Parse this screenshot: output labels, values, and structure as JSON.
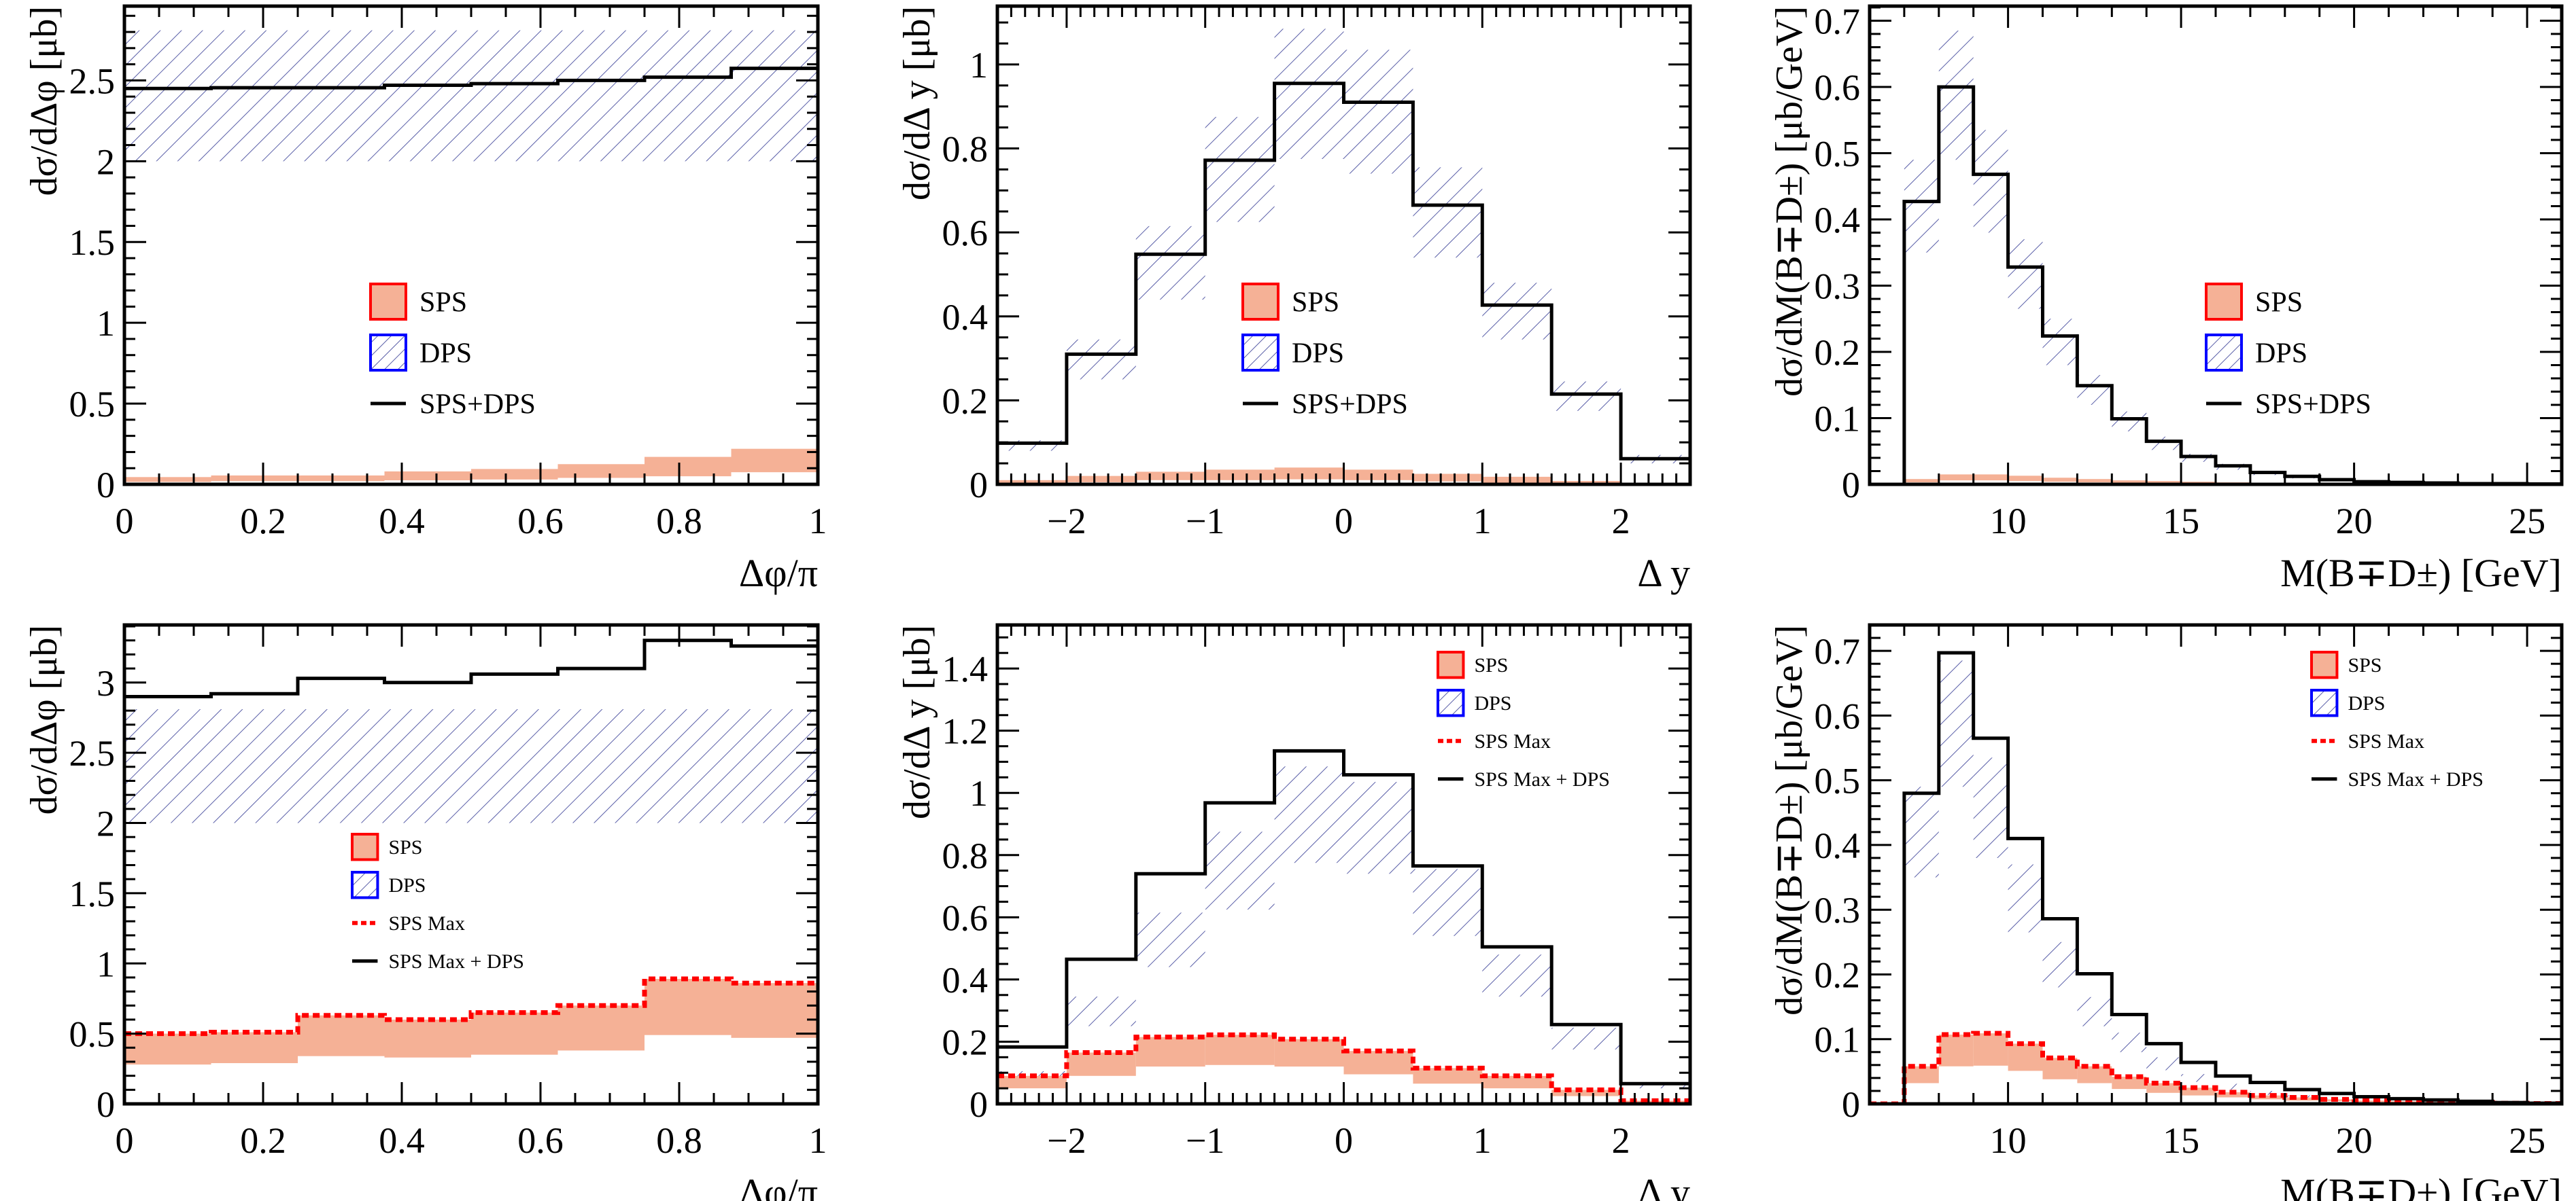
{
  "colors": {
    "sps_fill": "#f5b196",
    "sps_edge": "#ff0000",
    "dps_hatch": "#5a5fa8",
    "dps_edge": "#0000ff",
    "sum_line": "#000000",
    "sps_max_line": "#ff0000"
  },
  "chart_data": [
    {
      "type": "histogram",
      "panel": "top-left",
      "xlabel": "Δφ/π",
      "ylabel": "dσ/dΔφ [μb]",
      "xlim": [
        0,
        1
      ],
      "ylim": [
        0,
        2.96
      ],
      "xticks": [
        0,
        0.2,
        0.4,
        0.6,
        0.8,
        1
      ],
      "xtick_labels": [
        "0",
        "0.2",
        "0.4",
        "0.6",
        "0.8",
        "1"
      ],
      "yticks": [
        0,
        0.5,
        1,
        1.5,
        2,
        2.5
      ],
      "ytick_labels": [
        "0",
        "0.5",
        "1",
        "1.5",
        "2",
        "2.5"
      ],
      "x_minor": 0.05,
      "y_minor": 0.1,
      "bin_edges": [
        0,
        0.125,
        0.25,
        0.375,
        0.5,
        0.625,
        0.75,
        0.875,
        1
      ],
      "sps_band": {
        "low": [
          0.015,
          0.02,
          0.02,
          0.025,
          0.03,
          0.04,
          0.05,
          0.075
        ],
        "high": [
          0.045,
          0.055,
          0.055,
          0.08,
          0.095,
          0.125,
          0.17,
          0.22
        ]
      },
      "dps_band": {
        "low": [
          2.0,
          2.0,
          2.0,
          2.0,
          2.0,
          2.0,
          2.0,
          2.0
        ],
        "high": [
          2.81,
          2.81,
          2.81,
          2.81,
          2.81,
          2.81,
          2.81,
          2.81
        ]
      },
      "sum_line": [
        2.45,
        2.455,
        2.455,
        2.47,
        2.48,
        2.5,
        2.52,
        2.575
      ],
      "sps_max_line": null,
      "legend": {
        "position": "center",
        "entries": [
          {
            "type": "sps",
            "label": "SPS"
          },
          {
            "type": "dps",
            "label": "DPS"
          },
          {
            "type": "line",
            "label": "SPS+DPS"
          }
        ]
      }
    },
    {
      "type": "histogram",
      "panel": "top-middle",
      "xlabel": "Δ y",
      "ylabel": "dσ/dΔ y [μb]",
      "xlim": [
        -2.5,
        2.5
      ],
      "ylim": [
        0,
        1.139
      ],
      "xticks": [
        -2,
        -1,
        0,
        1,
        2
      ],
      "xtick_labels": [
        "−2",
        "−1",
        "0",
        "1",
        "2"
      ],
      "yticks": [
        0,
        0.2,
        0.4,
        0.6,
        0.8,
        1
      ],
      "ytick_labels": [
        "0",
        "0.2",
        "0.4",
        "0.6",
        "0.8",
        "1"
      ],
      "x_minor": 0.1,
      "y_minor": 0.05,
      "bin_edges": [
        -2.5,
        -2,
        -1.5,
        -1,
        -0.5,
        0,
        0.5,
        1,
        1.5,
        2,
        2.5
      ],
      "sps_band": {
        "low": [
          0.0,
          0.005,
          0.01,
          0.01,
          0.012,
          0.01,
          0.007,
          0.004,
          0.002,
          0.0
        ],
        "high": [
          0.01,
          0.02,
          0.03,
          0.035,
          0.04,
          0.035,
          0.025,
          0.018,
          0.008,
          0.003
        ]
      },
      "dps_band": {
        "low": [
          0.08,
          0.25,
          0.44,
          0.625,
          0.775,
          0.74,
          0.54,
          0.345,
          0.175,
          0.05
        ],
        "high": [
          0.105,
          0.345,
          0.615,
          0.875,
          1.085,
          1.035,
          0.755,
          0.48,
          0.245,
          0.07
        ]
      },
      "sum_line": [
        0.098,
        0.31,
        0.548,
        0.772,
        0.955,
        0.91,
        0.665,
        0.427,
        0.215,
        0.061
      ],
      "sps_max_line": null,
      "legend": {
        "position": "center",
        "entries": [
          {
            "type": "sps",
            "label": "SPS"
          },
          {
            "type": "dps",
            "label": "DPS"
          },
          {
            "type": "line",
            "label": "SPS+DPS"
          }
        ]
      }
    },
    {
      "type": "histogram",
      "panel": "top-right",
      "xlabel": "M(B∓D±) [GeV]",
      "ylabel": "dσ/dM(B∓D±) [μb/GeV]",
      "xlim": [
        6,
        26
      ],
      "ylim": [
        0,
        0.722
      ],
      "xticks": [
        10,
        15,
        20,
        25
      ],
      "xtick_labels": [
        "10",
        "15",
        "20",
        "25"
      ],
      "yticks": [
        0,
        0.1,
        0.2,
        0.3,
        0.4,
        0.5,
        0.6,
        0.7
      ],
      "ytick_labels": [
        "0",
        "0.1",
        "0.2",
        "0.3",
        "0.4",
        "0.5",
        "0.6",
        "0.7"
      ],
      "x_minor": 1,
      "y_minor": 0.02,
      "bin_edges": [
        7,
        8,
        9,
        10,
        11,
        12,
        13,
        14,
        15,
        16,
        17,
        18,
        19,
        20,
        21,
        22,
        23,
        24,
        25,
        26
      ],
      "sps_band": {
        "low": [
          0.003,
          0.006,
          0.006,
          0.005,
          0.004,
          0.003,
          0.002,
          0.002,
          0.001,
          0.001,
          0.0,
          0.0,
          0.0,
          0.0,
          0.0,
          0.0,
          0.0,
          0.0,
          0.0
        ],
        "high": [
          0.008,
          0.015,
          0.015,
          0.013,
          0.01,
          0.008,
          0.006,
          0.005,
          0.004,
          0.003,
          0.002,
          0.002,
          0.001,
          0.001,
          0.001,
          0.0,
          0.0,
          0.0,
          0.0
        ]
      },
      "dps_band": {
        "low": [
          0.35,
          0.49,
          0.38,
          0.265,
          0.18,
          0.12,
          0.08,
          0.052,
          0.034,
          0.022,
          0.014,
          0.009,
          0.006,
          0.003,
          0.002,
          0.001,
          0.001,
          0.0,
          0.0
        ],
        "high": [
          0.49,
          0.685,
          0.535,
          0.37,
          0.25,
          0.165,
          0.11,
          0.072,
          0.046,
          0.031,
          0.02,
          0.013,
          0.008,
          0.005,
          0.004,
          0.003,
          0.002,
          0.001,
          0.001
        ]
      },
      "sum_line": [
        0.427,
        0.6,
        0.468,
        0.328,
        0.224,
        0.149,
        0.099,
        0.065,
        0.042,
        0.028,
        0.018,
        0.012,
        0.007,
        0.004,
        0.003,
        0.002,
        0.001,
        0.001,
        0.0005
      ],
      "sps_max_line": null,
      "legend": {
        "position": "center-right",
        "entries": [
          {
            "type": "sps",
            "label": "SPS"
          },
          {
            "type": "dps",
            "label": "DPS"
          },
          {
            "type": "line",
            "label": "SPS+DPS"
          }
        ]
      }
    },
    {
      "type": "histogram",
      "panel": "bottom-left",
      "xlabel": "Δφ/π",
      "ylabel": "dσ/dΔφ [μb]",
      "xlim": [
        0,
        1
      ],
      "ylim": [
        0,
        3.41
      ],
      "xticks": [
        0,
        0.2,
        0.4,
        0.6,
        0.8,
        1
      ],
      "xtick_labels": [
        "0",
        "0.2",
        "0.4",
        "0.6",
        "0.8",
        "1"
      ],
      "yticks": [
        0,
        0.5,
        1,
        1.5,
        2,
        2.5,
        3
      ],
      "ytick_labels": [
        "0",
        "0.5",
        "1",
        "1.5",
        "2",
        "2.5",
        "3"
      ],
      "x_minor": 0.05,
      "y_minor": 0.1,
      "bin_edges": [
        0,
        0.125,
        0.25,
        0.375,
        0.5,
        0.625,
        0.75,
        0.875,
        1
      ],
      "sps_band": {
        "low": [
          0.28,
          0.29,
          0.34,
          0.33,
          0.35,
          0.38,
          0.49,
          0.47
        ],
        "high": [
          0.5,
          0.51,
          0.63,
          0.6,
          0.65,
          0.7,
          0.89,
          0.86
        ]
      },
      "dps_band": {
        "low": [
          2.0,
          2.0,
          2.0,
          2.0,
          2.0,
          2.0,
          2.0,
          2.0
        ],
        "high": [
          2.81,
          2.81,
          2.81,
          2.81,
          2.81,
          2.81,
          2.81,
          2.81
        ]
      },
      "sum_line": [
        2.9,
        2.92,
        3.03,
        3.0,
        3.06,
        3.1,
        3.3,
        3.26
      ],
      "sps_max_line": [
        0.5,
        0.51,
        0.63,
        0.6,
        0.65,
        0.7,
        0.89,
        0.86
      ],
      "legend": {
        "position": "center",
        "entries": [
          {
            "type": "sps",
            "label": "SPS"
          },
          {
            "type": "dps",
            "label": "DPS"
          },
          {
            "type": "dashed",
            "label": "SPS Max"
          },
          {
            "type": "line",
            "label": "SPS Max + DPS"
          }
        ]
      }
    },
    {
      "type": "histogram",
      "panel": "bottom-middle",
      "xlabel": "Δ y",
      "ylabel": "dσ/dΔ y [μb]",
      "xlim": [
        -2.5,
        2.5
      ],
      "ylim": [
        0,
        1.54
      ],
      "xticks": [
        -2,
        -1,
        0,
        1,
        2
      ],
      "xtick_labels": [
        "−2",
        "−1",
        "0",
        "1",
        "2"
      ],
      "yticks": [
        0,
        0.2,
        0.4,
        0.6,
        0.8,
        1,
        1.2,
        1.4
      ],
      "ytick_labels": [
        "0",
        "0.2",
        "0.4",
        "0.6",
        "0.8",
        "1",
        "1.2",
        "1.4"
      ],
      "x_minor": 0.1,
      "y_minor": 0.05,
      "bin_edges": [
        -2.5,
        -2,
        -1.5,
        -1,
        -0.5,
        0,
        0.5,
        1,
        1.5,
        2,
        2.5
      ],
      "sps_band": {
        "low": [
          0.05,
          0.09,
          0.12,
          0.125,
          0.12,
          0.095,
          0.065,
          0.05,
          0.025,
          0.005
        ],
        "high": [
          0.09,
          0.165,
          0.215,
          0.222,
          0.208,
          0.17,
          0.115,
          0.09,
          0.045,
          0.01
        ]
      },
      "dps_band": {
        "low": [
          0.08,
          0.25,
          0.44,
          0.625,
          0.775,
          0.74,
          0.54,
          0.345,
          0.175,
          0.05
        ],
        "high": [
          0.105,
          0.345,
          0.615,
          0.875,
          1.085,
          1.035,
          0.755,
          0.48,
          0.245,
          0.07
        ]
      },
      "sum_line": [
        0.183,
        0.465,
        0.74,
        0.968,
        1.135,
        1.058,
        0.765,
        0.505,
        0.255,
        0.065
      ],
      "sps_max_line": [
        0.09,
        0.165,
        0.215,
        0.222,
        0.208,
        0.17,
        0.115,
        0.09,
        0.045,
        0.01
      ],
      "legend": {
        "position": "top-right",
        "entries": [
          {
            "type": "sps",
            "label": "SPS"
          },
          {
            "type": "dps",
            "label": "DPS"
          },
          {
            "type": "dashed",
            "label": "SPS Max"
          },
          {
            "type": "line",
            "label": "SPS Max + DPS"
          }
        ]
      }
    },
    {
      "type": "histogram",
      "panel": "bottom-right",
      "xlabel": "M(B∓D±) [GeV]",
      "ylabel": "dσ/dM(B∓D±) [μb/GeV]",
      "xlim": [
        6,
        26
      ],
      "ylim": [
        0,
        0.74
      ],
      "xticks": [
        10,
        15,
        20,
        25
      ],
      "xtick_labels": [
        "10",
        "15",
        "20",
        "25"
      ],
      "yticks": [
        0,
        0.1,
        0.2,
        0.3,
        0.4,
        0.5,
        0.6,
        0.7
      ],
      "ytick_labels": [
        "0",
        "0.1",
        "0.2",
        "0.3",
        "0.4",
        "0.5",
        "0.6",
        "0.7"
      ],
      "x_minor": 1,
      "y_minor": 0.02,
      "bin_edges": [
        7,
        8,
        9,
        10,
        11,
        12,
        13,
        14,
        15,
        16,
        17,
        18,
        19,
        20,
        21,
        22,
        23,
        24,
        25,
        26
      ],
      "sps_band": {
        "low": [
          0.032,
          0.058,
          0.059,
          0.051,
          0.038,
          0.032,
          0.023,
          0.017,
          0.013,
          0.01,
          0.007,
          0.005,
          0.004,
          0.003,
          0.002,
          0.001,
          0.001,
          0.0,
          0.0
        ],
        "high": [
          0.058,
          0.107,
          0.109,
          0.093,
          0.071,
          0.058,
          0.042,
          0.032,
          0.025,
          0.018,
          0.013,
          0.01,
          0.007,
          0.005,
          0.004,
          0.003,
          0.002,
          0.001,
          0.0005
        ]
      },
      "dps_band": {
        "low": [
          0.35,
          0.49,
          0.38,
          0.265,
          0.18,
          0.12,
          0.08,
          0.052,
          0.034,
          0.022,
          0.014,
          0.009,
          0.006,
          0.003,
          0.002,
          0.001,
          0.001,
          0.0,
          0.0
        ],
        "high": [
          0.49,
          0.685,
          0.535,
          0.37,
          0.25,
          0.165,
          0.11,
          0.072,
          0.046,
          0.031,
          0.02,
          0.013,
          0.008,
          0.005,
          0.004,
          0.003,
          0.002,
          0.001,
          0.001
        ]
      },
      "sum_line": [
        0.48,
        0.697,
        0.565,
        0.41,
        0.286,
        0.201,
        0.138,
        0.093,
        0.064,
        0.043,
        0.033,
        0.022,
        0.016,
        0.011,
        0.008,
        0.006,
        0.004,
        0.002,
        0.001
      ],
      "sps_max_line": [
        0.058,
        0.107,
        0.109,
        0.093,
        0.071,
        0.058,
        0.042,
        0.032,
        0.025,
        0.018,
        0.013,
        0.01,
        0.007,
        0.005,
        0.004,
        0.003,
        0.002,
        0.001,
        0.0005
      ],
      "legend": {
        "position": "top-right",
        "entries": [
          {
            "type": "sps",
            "label": "SPS"
          },
          {
            "type": "dps",
            "label": "DPS"
          },
          {
            "type": "dashed",
            "label": "SPS Max"
          },
          {
            "type": "line",
            "label": "SPS Max + DPS"
          }
        ]
      }
    }
  ]
}
